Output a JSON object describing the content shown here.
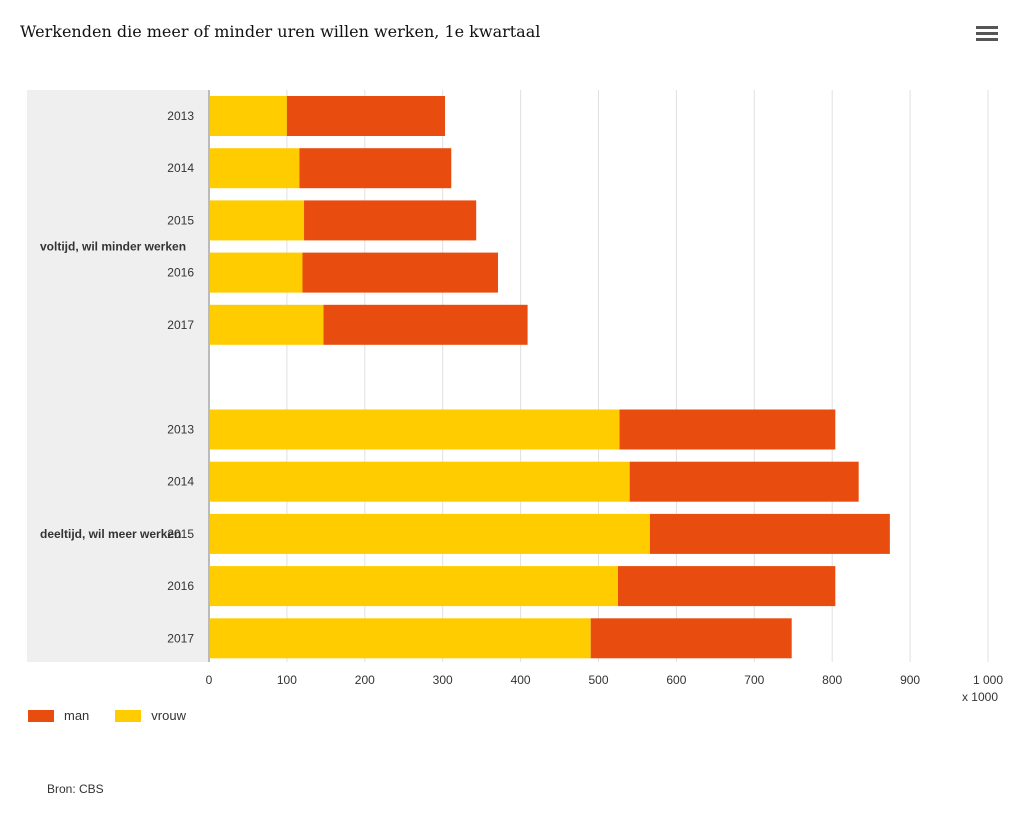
{
  "title": "Werkenden die meer of minder uren willen werken, 1e kwartaal",
  "menu_icon": "hamburger-menu-icon",
  "source": "Bron: CBS",
  "unit": "x 1000",
  "colors": {
    "man": "#e84c0e",
    "vrouw": "#ffcc00",
    "group_band": "#efefef",
    "grid": "#e0e0e0",
    "axis": "#bbbbbb"
  },
  "chart_data": {
    "type": "bar",
    "orientation": "horizontal",
    "stacked": true,
    "title": "Werkenden die meer of minder uren willen werken, 1e kwartaal",
    "unit": "x 1000",
    "xlim": [
      0,
      1000
    ],
    "x_ticks": [
      0,
      100,
      200,
      300,
      400,
      500,
      600,
      700,
      800,
      900,
      1000
    ],
    "x_tick_labels": [
      "0",
      "100",
      "200",
      "300",
      "400",
      "500",
      "600",
      "700",
      "800",
      "900",
      "1 000"
    ],
    "grid": true,
    "legend_position": "bottom-left",
    "groups": [
      {
        "name": "voltijd, wil minder werken",
        "categories": [
          "2013",
          "2014",
          "2015",
          "2016",
          "2017"
        ],
        "series": [
          {
            "name": "vrouw",
            "values": [
              100,
              116,
              122,
              120,
              147
            ]
          },
          {
            "name": "man",
            "values": [
              203,
              195,
              221,
              251,
              262
            ]
          }
        ]
      },
      {
        "name": "deeltijd, wil meer werken",
        "categories": [
          "2013",
          "2014",
          "2015",
          "2016",
          "2017"
        ],
        "series": [
          {
            "name": "vrouw",
            "values": [
              527,
              540,
              566,
              525,
              490
            ]
          },
          {
            "name": "man",
            "values": [
              277,
              294,
              308,
              279,
              258
            ]
          }
        ]
      }
    ],
    "legend": [
      "man",
      "vrouw"
    ]
  }
}
